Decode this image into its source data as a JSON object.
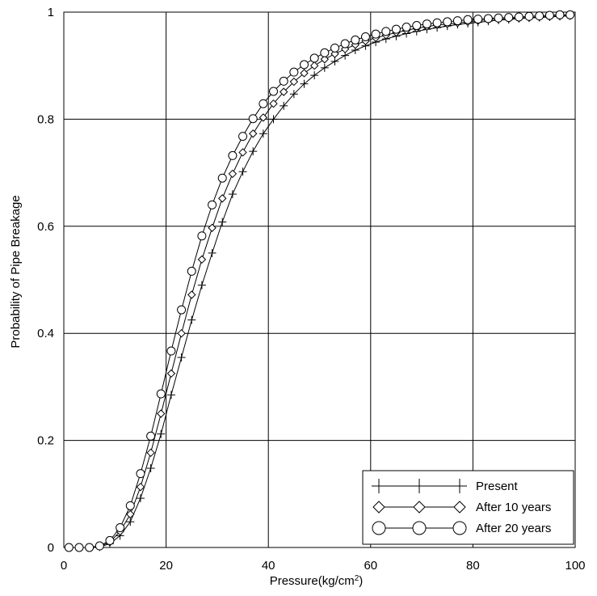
{
  "chart_data": {
    "type": "line",
    "title": "",
    "xlabel": "Pressure(kg/cm",
    "xlabel_superscript": "2",
    "xlabel_suffix": ")",
    "ylabel": "Probability of Pipe Breakage",
    "xlim": [
      0,
      100
    ],
    "ylim": [
      0,
      1
    ],
    "xticks": [
      0,
      20,
      40,
      60,
      80,
      100
    ],
    "yticks": [
      0,
      0.2,
      0.4,
      0.6,
      0.8,
      1
    ],
    "xtick_labels": [
      "0",
      "20",
      "40",
      "60",
      "80",
      "100"
    ],
    "ytick_labels": [
      "0",
      "0.2",
      "0.4",
      "0.6",
      "0.8",
      "1"
    ],
    "grid": true,
    "legend_position": "bottom-right",
    "x": [
      1,
      3,
      5,
      7,
      9,
      11,
      13,
      15,
      17,
      19,
      21,
      23,
      25,
      27,
      29,
      31,
      33,
      35,
      37,
      39,
      41,
      43,
      45,
      47,
      49,
      51,
      53,
      55,
      57,
      59,
      61,
      63,
      65,
      67,
      69,
      71,
      73,
      75,
      77,
      79,
      81,
      83,
      85,
      87,
      89,
      91,
      93,
      95,
      97,
      99
    ],
    "series": [
      {
        "name": "Present",
        "marker": "plus",
        "values": [
          0,
          0,
          0,
          0.001,
          0.007,
          0.022,
          0.048,
          0.092,
          0.148,
          0.212,
          0.285,
          0.355,
          0.425,
          0.49,
          0.55,
          0.608,
          0.66,
          0.702,
          0.74,
          0.773,
          0.8,
          0.825,
          0.847,
          0.866,
          0.882,
          0.896,
          0.908,
          0.919,
          0.929,
          0.937,
          0.944,
          0.95,
          0.955,
          0.96,
          0.964,
          0.968,
          0.971,
          0.974,
          0.977,
          0.979,
          0.981,
          0.983,
          0.985,
          0.986,
          0.988,
          0.989,
          0.99,
          0.991,
          0.992,
          0.993
        ]
      },
      {
        "name": "After 10 years",
        "marker": "diamond",
        "values": [
          0,
          0,
          0,
          0.002,
          0.01,
          0.03,
          0.062,
          0.113,
          0.177,
          0.25,
          0.325,
          0.4,
          0.472,
          0.538,
          0.597,
          0.652,
          0.698,
          0.738,
          0.773,
          0.803,
          0.829,
          0.851,
          0.87,
          0.886,
          0.9,
          0.912,
          0.922,
          0.931,
          0.939,
          0.946,
          0.952,
          0.957,
          0.962,
          0.966,
          0.97,
          0.973,
          0.976,
          0.978,
          0.98,
          0.982,
          0.984,
          0.986,
          0.987,
          0.988,
          0.989,
          0.99,
          0.991,
          0.992,
          0.993,
          0.994
        ]
      },
      {
        "name": "After 20 years",
        "marker": "circle",
        "values": [
          0,
          0,
          0,
          0.003,
          0.013,
          0.037,
          0.078,
          0.138,
          0.208,
          0.287,
          0.367,
          0.444,
          0.516,
          0.582,
          0.64,
          0.69,
          0.732,
          0.768,
          0.801,
          0.829,
          0.852,
          0.871,
          0.888,
          0.902,
          0.914,
          0.924,
          0.933,
          0.941,
          0.948,
          0.954,
          0.959,
          0.964,
          0.968,
          0.972,
          0.975,
          0.978,
          0.98,
          0.982,
          0.984,
          0.986,
          0.987,
          0.988,
          0.989,
          0.99,
          0.991,
          0.992,
          0.993,
          0.994,
          0.995,
          0.995
        ]
      }
    ]
  }
}
